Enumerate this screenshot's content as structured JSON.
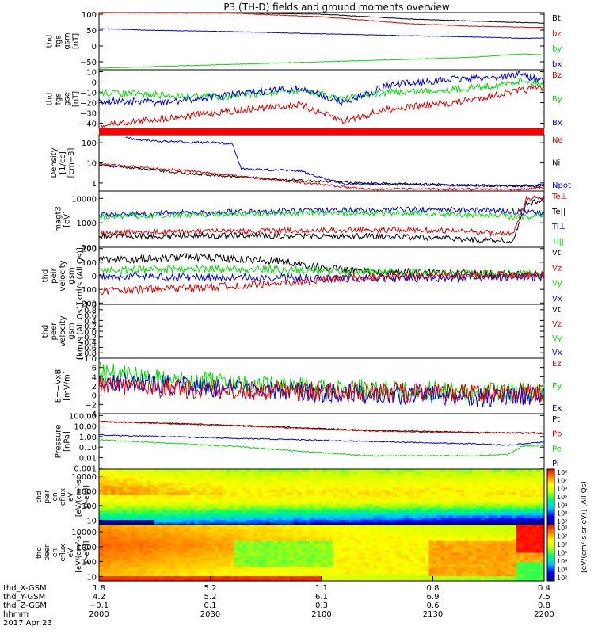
{
  "title": "P3 (TH-D) fields and ground moments overview",
  "colors": {
    "black": "#000000",
    "red": "#e00000",
    "green": "#00dd00",
    "blue": "#0000e0"
  },
  "chart_data": [
    {
      "type": "line",
      "panel": "fgs_gsm",
      "ylabel": [
        "thd",
        "fgs",
        "gsm",
        "[nT]"
      ],
      "ylim": [
        -75,
        105
      ],
      "yticks": [
        "100",
        "50",
        "0",
        "−50"
      ],
      "ytick_values": [
        100,
        50,
        0,
        -50
      ],
      "legend": [
        "Bt",
        "bz",
        "by",
        "bx"
      ],
      "series": [
        {
          "name": "Bt",
          "color": "black",
          "x": [
            0,
            0.3,
            0.5,
            0.7,
            0.85,
            1
          ],
          "y": [
            105,
            104,
            100,
            85,
            78,
            72
          ]
        },
        {
          "name": "bz",
          "color": "red",
          "x": [
            0,
            0.3,
            0.5,
            0.7,
            0.85,
            1
          ],
          "y": [
            104,
            103,
            92,
            70,
            62,
            58
          ]
        },
        {
          "name": "by",
          "color": "green",
          "x": [
            0,
            0.2,
            0.5,
            0.7,
            0.85,
            0.95,
            1
          ],
          "y": [
            -70,
            -62,
            -50,
            -42,
            -35,
            -25,
            -28
          ]
        },
        {
          "name": "bx",
          "color": "blue",
          "x": [
            0,
            0.1,
            0.3,
            0.5,
            0.7,
            0.85,
            0.95,
            1
          ],
          "y": [
            55,
            50,
            45,
            38,
            32,
            28,
            24,
            25
          ]
        }
      ]
    },
    {
      "type": "line",
      "panel": "fgs_gse",
      "ylabel": [
        "thd",
        "fgs",
        "gse",
        "[nT]"
      ],
      "ylim": [
        -45,
        12
      ],
      "yticks": [
        "10",
        "0",
        "−10",
        "−20",
        "−30",
        "−40"
      ],
      "ytick_values": [
        10,
        0,
        -10,
        -20,
        -30,
        -40
      ],
      "legend": [
        "Bz",
        "By",
        "Bx"
      ],
      "series": [
        {
          "name": "Bz",
          "color": "red",
          "x": [
            0,
            0.15,
            0.3,
            0.45,
            0.55,
            0.65,
            0.8,
            0.9,
            0.95,
            1
          ],
          "y": [
            -42,
            -35,
            -28,
            -22,
            -38,
            -26,
            -20,
            -12,
            -8,
            -5
          ]
        },
        {
          "name": "By",
          "color": "green",
          "x": [
            0,
            0.15,
            0.3,
            0.45,
            0.55,
            0.65,
            0.8,
            0.9,
            0.95,
            1
          ],
          "y": [
            -10,
            -13,
            -14,
            -8,
            -16,
            -10,
            -7,
            -3,
            2,
            -2
          ]
        },
        {
          "name": "Bx",
          "color": "blue",
          "x": [
            0,
            0.15,
            0.3,
            0.45,
            0.55,
            0.65,
            0.8,
            0.9,
            0.95,
            1
          ],
          "y": [
            -18,
            -20,
            -12,
            -6,
            -20,
            -3,
            3,
            5,
            8,
            0
          ]
        }
      ]
    },
    {
      "type": "line",
      "panel": "density",
      "ylabel": [
        "Density",
        "[1/cc]",
        "[cm−3]"
      ],
      "yscale": "log",
      "ylim": [
        0.4,
        250
      ],
      "yticks": [
        "100",
        "10",
        "1"
      ],
      "ytick_values": [
        100,
        10,
        1
      ],
      "legend": [
        "Ne",
        "Ni",
        "Npot"
      ],
      "series": [
        {
          "name": "Npot",
          "color": "blue",
          "x": [
            0.06,
            0.08,
            0.12,
            0.25,
            0.3,
            0.32,
            0.45,
            0.55,
            0.75,
            0.9,
            1
          ],
          "y": [
            180,
            150,
            120,
            100,
            90,
            5,
            4,
            0.9,
            0.8,
            0.7,
            0.8
          ]
        },
        {
          "name": "Ni",
          "color": "black",
          "x": [
            0,
            0.2,
            0.4,
            0.6,
            0.8,
            0.95,
            1
          ],
          "y": [
            8,
            3,
            1.5,
            1,
            0.8,
            0.7,
            0.7
          ]
        },
        {
          "name": "Ne",
          "color": "red",
          "x": [
            0,
            0.2,
            0.4,
            0.6,
            0.8,
            0.95,
            1
          ],
          "y": [
            9,
            4,
            1.4,
            0.5,
            0.5,
            0.5,
            0.6
          ]
        }
      ]
    },
    {
      "type": "line",
      "panel": "temperature",
      "ylabel": [
        "magt3",
        "[eV]"
      ],
      "yscale": "log",
      "ylim": [
        100,
        20000
      ],
      "yticks": [
        "10000",
        "1000",
        "100"
      ],
      "ytick_values": [
        10000,
        1000,
        100
      ],
      "legend": [
        "Te⊥",
        "Te||",
        "Ti⊥",
        "Ti||"
      ],
      "series": [
        {
          "name": "Te⊥",
          "color": "red",
          "x": [
            0,
            0.3,
            0.6,
            0.75,
            0.85,
            0.93,
            0.96,
            1
          ],
          "y": [
            380,
            450,
            520,
            500,
            420,
            350,
            9000,
            12000
          ]
        },
        {
          "name": "Te||",
          "color": "black",
          "x": [
            0,
            0.3,
            0.6,
            0.75,
            0.85,
            0.93,
            0.96,
            1
          ],
          "y": [
            280,
            300,
            280,
            250,
            200,
            180,
            6000,
            8000
          ]
        },
        {
          "name": "Ti⊥",
          "color": "blue",
          "x": [
            0,
            0.2,
            0.5,
            0.7,
            0.85,
            0.95,
            1
          ],
          "y": [
            2000,
            2600,
            3200,
            3500,
            3400,
            2800,
            2500
          ]
        },
        {
          "name": "Ti||",
          "color": "green",
          "x": [
            0,
            0.2,
            0.5,
            0.7,
            0.85,
            0.95,
            1
          ],
          "y": [
            1800,
            2200,
            2600,
            2400,
            2100,
            1700,
            2200
          ]
        }
      ]
    },
    {
      "type": "line",
      "panel": "peir_velocity",
      "ylabel": [
        "thd",
        "peir",
        "velocity",
        "gsm",
        "[km/s (All Qs)]"
      ],
      "ylim": [
        -210,
        210
      ],
      "yticks": [
        "200",
        "100",
        "0",
        "−100",
        "−200"
      ],
      "ytick_values": [
        200,
        100,
        0,
        -100,
        -200
      ],
      "legend": [
        "Vt",
        "Vz",
        "Vy",
        "Vx"
      ],
      "series": [
        {
          "name": "Vt",
          "color": "black",
          "x": [
            0,
            0.2,
            0.4,
            0.5,
            0.6,
            0.8,
            1
          ],
          "y": [
            110,
            140,
            110,
            60,
            30,
            20,
            10
          ]
        },
        {
          "name": "Vy",
          "color": "green",
          "x": [
            0,
            0.2,
            0.4,
            0.6,
            0.8,
            1
          ],
          "y": [
            40,
            50,
            45,
            25,
            15,
            10
          ]
        },
        {
          "name": "Vx",
          "color": "blue",
          "x": [
            0,
            0.2,
            0.4,
            0.6,
            0.8,
            1
          ],
          "y": [
            0,
            -10,
            -15,
            -20,
            -15,
            -10
          ]
        },
        {
          "name": "Vz",
          "color": "red",
          "x": [
            0,
            0.2,
            0.4,
            0.5,
            0.6,
            0.8,
            1
          ],
          "y": [
            -110,
            -90,
            -60,
            -30,
            -10,
            0,
            5
          ]
        }
      ]
    },
    {
      "type": "line",
      "panel": "peer_velocity",
      "ylabel": [
        "thd",
        "peer",
        "velocity",
        "gsm",
        "[km/s (All Qs)]"
      ],
      "ylim": [
        -1,
        1
      ],
      "yticks": [
        "1.0",
        "0.8",
        "0.6",
        "0.4",
        "0.2",
        "0.0",
        "−0.2",
        "−0.4",
        "−0.6",
        "−0.8",
        "−1.0"
      ],
      "ytick_values": [
        1,
        0.8,
        0.6,
        0.4,
        0.2,
        0,
        -0.2,
        -0.4,
        -0.6,
        -0.8,
        -1
      ],
      "legend": [
        "Vt",
        "Vz",
        "Vy",
        "Vx"
      ],
      "series": []
    },
    {
      "type": "line",
      "panel": "efield",
      "ylabel": [
        "E=−VxB",
        "[mV/m]"
      ],
      "ylim": [
        -4,
        8
      ],
      "yticks": [
        "6",
        "4",
        "2",
        "0",
        "−2",
        "−4"
      ],
      "ytick_values": [
        6,
        4,
        2,
        0,
        -2,
        -4
      ],
      "legend": [
        "Ez",
        "Ey",
        "Ex"
      ],
      "series": [
        {
          "name": "Ey",
          "color": "green",
          "x": [
            0,
            0.1,
            0.3,
            0.5,
            0.7,
            0.9,
            1
          ],
          "y": [
            5,
            4,
            2.5,
            1.5,
            1,
            0.8,
            0.5
          ]
        },
        {
          "name": "Ex",
          "color": "blue",
          "x": [
            0,
            0.1,
            0.3,
            0.5,
            0.7,
            0.9,
            1
          ],
          "y": [
            3,
            2.5,
            1.5,
            0.5,
            0,
            -0.5,
            0
          ]
        },
        {
          "name": "Ez",
          "color": "red",
          "x": [
            0,
            0.1,
            0.3,
            0.5,
            0.7,
            0.9,
            1
          ],
          "y": [
            2,
            1.5,
            1,
            0.8,
            0.5,
            0.5,
            0.5
          ]
        }
      ]
    },
    {
      "type": "line",
      "panel": "pressure",
      "ylabel": [
        "Pressure",
        "[nPa]"
      ],
      "yscale": "log",
      "ylim": [
        0.0008,
        150
      ],
      "yticks": [
        "100.00",
        "10.00",
        "1.00",
        "0.10",
        "0.01",
        "0.001"
      ],
      "ytick_values": [
        100,
        10,
        1,
        0.1,
        0.01,
        0.001
      ],
      "legend": [
        "Pt",
        "Pb",
        "Pe",
        "Pi"
      ],
      "series": [
        {
          "name": "Pt",
          "color": "black",
          "x": [
            0,
            0.3,
            0.6,
            0.85,
            1
          ],
          "y": [
            28,
            12,
            4,
            2.5,
            2
          ]
        },
        {
          "name": "Pb",
          "color": "red",
          "x": [
            0,
            0.3,
            0.6,
            0.85,
            1
          ],
          "y": [
            27,
            11,
            3.5,
            2.2,
            2.3
          ]
        },
        {
          "name": "Pi",
          "color": "blue",
          "x": [
            0,
            0.3,
            0.6,
            0.85,
            0.92,
            0.95,
            1
          ],
          "y": [
            1.4,
            0.7,
            0.35,
            0.2,
            0.15,
            0.2,
            0.3
          ]
        },
        {
          "name": "Pe",
          "color": "green",
          "x": [
            0,
            0.3,
            0.5,
            0.6,
            0.85,
            0.92,
            0.95,
            1
          ],
          "y": [
            0.5,
            0.12,
            0.03,
            0.015,
            0.015,
            0.02,
            0.12,
            0.15
          ]
        }
      ]
    },
    {
      "type": "heatmap",
      "panel": "peir_en_eflux",
      "ylabel": [
        "thd",
        "peir",
        "en",
        "eflux",
        "eV",
        "[eV/(cm²-s-",
        "sr-eV)]"
      ],
      "yscale": "log",
      "ylim": [
        5,
        30000
      ],
      "yticks": [
        "10000",
        "1000",
        "100",
        "10"
      ],
      "ytick_values": [
        10000,
        1000,
        100,
        10
      ]
    },
    {
      "type": "heatmap",
      "panel": "peer_en_eflux",
      "ylabel": [
        "thd",
        "peer",
        "en",
        "eflux",
        "eV",
        "[eV/(cm²-s-",
        "sr-eV)]"
      ],
      "yscale": "log",
      "ylim": [
        5,
        30000
      ],
      "yticks": [
        "10000",
        "1000",
        "100",
        "10"
      ],
      "ytick_values": [
        10000,
        1000,
        100,
        10
      ]
    }
  ],
  "colorbar": {
    "ticks_top": [
      "10⁸",
      "10⁷",
      "10⁶",
      "10⁵",
      "10⁴",
      "10³",
      "10²"
    ],
    "ticks_bottom": [
      "10⁸",
      "10⁷",
      "10⁶",
      "10⁵",
      "10⁴",
      "10³",
      "10²"
    ],
    "label": "[eV/(cm²-s-sr-eV)] (All Qs)"
  },
  "xaxis": {
    "rows": [
      {
        "label": "thd_X-GSM",
        "values": [
          "1.8",
          "5.2",
          "1.1",
          "0.8",
          "0.4"
        ]
      },
      {
        "label": "thd_Y-GSM",
        "values": [
          "4.2",
          "5.2",
          "6.1",
          "6.9",
          "7.5"
        ]
      },
      {
        "label": "thd_Z-GSM",
        "values": [
          "−0.1",
          "0.1",
          "0.3",
          "0.6",
          "0.8"
        ]
      },
      {
        "label": "hhmm",
        "values": [
          "2000",
          "2030",
          "2100",
          "2130",
          "2200"
        ]
      }
    ],
    "date": "2017 Apr 23"
  }
}
